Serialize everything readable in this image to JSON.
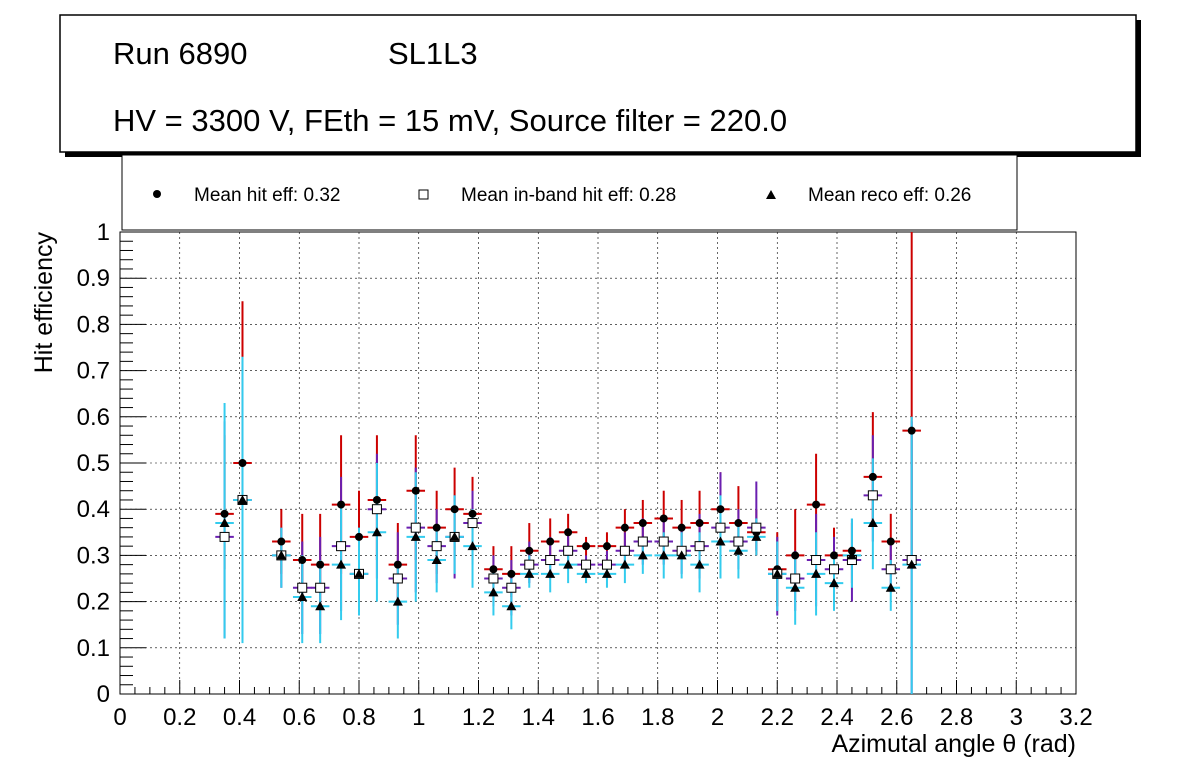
{
  "chart_data": {
    "type": "scatter",
    "header": {
      "run": "Run 6890",
      "chamber": "SL1L3",
      "settings": "HV = 3300 V, FEth = 15 mV, Source filter = 220.0"
    },
    "legend": [
      {
        "label": "Mean hit  eff: 0.32",
        "marker": "circle"
      },
      {
        "label": "Mean in-band hit eff: 0.28",
        "marker": "open-square"
      },
      {
        "label": "Mean reco eff: 0.26",
        "marker": "triangle"
      }
    ],
    "xlabel": "Azimutal angle θ (rad)",
    "ylabel": "Hit efficiency",
    "xlim": [
      0,
      3.2
    ],
    "ylim": [
      0,
      1
    ],
    "xticks": [
      "0",
      "0.2",
      "0.4",
      "0.6",
      "0.8",
      "1",
      "1.2",
      "1.4",
      "1.6",
      "1.8",
      "2",
      "2.2",
      "2.4",
      "2.6",
      "2.8",
      "3",
      "3.2"
    ],
    "yticks": [
      "0",
      "0.1",
      "0.2",
      "0.3",
      "0.4",
      "0.5",
      "0.6",
      "0.7",
      "0.8",
      "0.9",
      "1"
    ],
    "grid": true,
    "x": [
      0.35,
      0.41,
      0.54,
      0.61,
      0.67,
      0.74,
      0.8,
      0.86,
      0.93,
      0.99,
      1.06,
      1.12,
      1.18,
      1.25,
      1.31,
      1.37,
      1.44,
      1.5,
      1.56,
      1.63,
      1.69,
      1.75,
      1.82,
      1.88,
      1.94,
      2.01,
      2.07,
      2.13,
      2.2,
      2.26,
      2.33,
      2.39,
      2.45,
      2.52,
      2.58,
      2.65
    ],
    "x_halfwidth": 0.031,
    "series": [
      {
        "name": "Mean hit eff",
        "marker": "circle",
        "err_color": "#cc0000",
        "values": [
          0.39,
          0.5,
          0.33,
          0.29,
          0.28,
          0.41,
          0.34,
          0.42,
          0.28,
          0.44,
          0.36,
          0.4,
          0.39,
          0.27,
          0.26,
          0.31,
          0.33,
          0.35,
          0.32,
          0.32,
          0.36,
          0.37,
          0.38,
          0.36,
          0.37,
          0.4,
          0.37,
          0.35,
          0.27,
          0.3,
          0.41,
          0.3,
          0.31,
          0.47,
          0.33,
          0.57
        ],
        "err_low": [
          0.12,
          0.1,
          0.07,
          0.09,
          0.09,
          0.15,
          0.09,
          0.13,
          0.09,
          0.15,
          0.1,
          0.1,
          0.1,
          0.05,
          0.05,
          0.05,
          0.05,
          0.04,
          0.02,
          0.04,
          0.04,
          0.05,
          0.06,
          0.06,
          0.07,
          0.09,
          0.07,
          0.05,
          0.08,
          0.07,
          0.11,
          0.06,
          0.07,
          0.1,
          0.06,
          0.3
        ],
        "err_high": [
          0.17,
          0.35,
          0.07,
          0.1,
          0.11,
          0.15,
          0.1,
          0.14,
          0.09,
          0.12,
          0.08,
          0.09,
          0.08,
          0.05,
          0.06,
          0.06,
          0.05,
          0.04,
          0.02,
          0.03,
          0.04,
          0.05,
          0.06,
          0.06,
          0.07,
          0.08,
          0.08,
          0.05,
          0.08,
          0.1,
          0.11,
          0.06,
          0.06,
          0.14,
          0.06,
          0.43
        ]
      },
      {
        "name": "Mean in-band hit eff",
        "marker": "open-square",
        "err_color": "#6a1fb0",
        "values": [
          0.34,
          0.42,
          0.3,
          0.23,
          0.23,
          0.32,
          0.26,
          0.4,
          0.25,
          0.36,
          0.32,
          0.34,
          0.37,
          0.25,
          0.23,
          0.28,
          0.29,
          0.31,
          0.28,
          0.28,
          0.31,
          0.33,
          0.33,
          0.31,
          0.32,
          0.36,
          0.33,
          0.36,
          0.26,
          0.25,
          0.29,
          0.27,
          0.29,
          0.43,
          0.27,
          0.29
        ],
        "err_low": [
          0.22,
          0.3,
          0.07,
          0.1,
          0.1,
          0.14,
          0.09,
          0.15,
          0.1,
          0.14,
          0.08,
          0.09,
          0.09,
          0.06,
          0.06,
          0.04,
          0.04,
          0.04,
          0.02,
          0.03,
          0.04,
          0.05,
          0.05,
          0.05,
          0.07,
          0.08,
          0.06,
          0.05,
          0.09,
          0.07,
          0.1,
          0.08,
          0.09,
          0.1,
          0.05,
          0.29
        ],
        "err_high": [
          0.25,
          0.3,
          0.06,
          0.1,
          0.11,
          0.15,
          0.1,
          0.12,
          0.1,
          0.13,
          0.08,
          0.09,
          0.07,
          0.05,
          0.06,
          0.05,
          0.05,
          0.04,
          0.02,
          0.03,
          0.04,
          0.05,
          0.05,
          0.05,
          0.07,
          0.12,
          0.07,
          0.1,
          0.08,
          0.06,
          0.1,
          0.07,
          0.09,
          0.13,
          0.06,
          0.3
        ]
      },
      {
        "name": "Mean reco eff",
        "marker": "triangle",
        "err_color": "#33ccee",
        "values": [
          0.37,
          0.42,
          0.3,
          0.21,
          0.19,
          0.28,
          0.26,
          0.35,
          0.2,
          0.34,
          0.29,
          0.34,
          0.32,
          0.22,
          0.19,
          0.26,
          0.26,
          0.28,
          0.26,
          0.26,
          0.28,
          0.3,
          0.3,
          0.3,
          0.28,
          0.33,
          0.31,
          0.34,
          0.26,
          0.23,
          0.26,
          0.24,
          0.3,
          0.37,
          0.23,
          0.28
        ],
        "err_low": [
          0.25,
          0.31,
          0.07,
          0.1,
          0.08,
          0.12,
          0.09,
          0.15,
          0.08,
          0.14,
          0.07,
          0.08,
          0.09,
          0.05,
          0.05,
          0.03,
          0.04,
          0.04,
          0.02,
          0.03,
          0.04,
          0.04,
          0.05,
          0.05,
          0.06,
          0.08,
          0.06,
          0.04,
          0.08,
          0.08,
          0.09,
          0.06,
          0.07,
          0.1,
          0.05,
          0.28
        ],
        "err_high": [
          0.26,
          0.31,
          0.06,
          0.09,
          0.1,
          0.13,
          0.1,
          0.15,
          0.08,
          0.14,
          0.07,
          0.09,
          0.08,
          0.05,
          0.06,
          0.04,
          0.04,
          0.04,
          0.02,
          0.03,
          0.04,
          0.04,
          0.05,
          0.05,
          0.07,
          0.1,
          0.06,
          0.04,
          0.07,
          0.07,
          0.09,
          0.06,
          0.08,
          0.14,
          0.06,
          0.32
        ]
      }
    ]
  }
}
